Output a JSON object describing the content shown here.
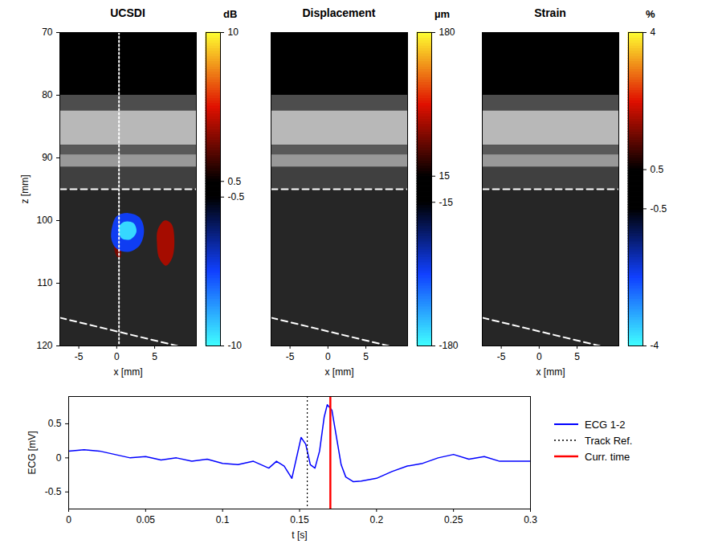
{
  "chart_data": [
    {
      "type": "heatmap",
      "title": "UCSDI",
      "xlabel": "x [mm]",
      "ylabel": "z [mm]",
      "xlim": [
        -7.5,
        10.5
      ],
      "ylim": [
        70,
        120
      ],
      "xticks": [
        -5,
        0,
        5
      ],
      "yticks": [
        70,
        80,
        90,
        100,
        110,
        120
      ],
      "tick_labels": true,
      "colorbar": {
        "label": "dB",
        "range": [
          -10,
          10
        ],
        "ticks": [
          10,
          0.5,
          -0.5,
          -10
        ]
      },
      "background": [
        {
          "z": [
            80,
            82.5
          ],
          "gray": 0.3
        },
        {
          "z": [
            82.5,
            88
          ],
          "gray": 0.72
        },
        {
          "z": [
            88,
            89.5
          ],
          "gray": 0.35
        },
        {
          "z": [
            89.5,
            91.5
          ],
          "gray": 0.6
        },
        {
          "z": [
            91.5,
            95
          ],
          "gray": 0.25
        },
        {
          "z": [
            95,
            120
          ],
          "gray": 0.15
        }
      ],
      "regions": [
        {
          "value": 3,
          "points": [
            [
              -0.3,
              103.5
            ],
            [
              0.2,
              103.2
            ],
            [
              0.6,
              104.5
            ],
            [
              0.4,
              106
            ],
            [
              -0.1,
              105.5
            ]
          ]
        },
        {
          "value": 4,
          "points": [
            [
              5.4,
              101.5
            ],
            [
              6.3,
              100
            ],
            [
              7.2,
              100.5
            ],
            [
              7.6,
              103
            ],
            [
              7.3,
              106
            ],
            [
              6.5,
              107.2
            ],
            [
              5.6,
              106
            ],
            [
              5.3,
              103.5
            ]
          ]
        },
        {
          "value": -5,
          "points": [
            [
              -0.6,
              101
            ],
            [
              0,
              99.3
            ],
            [
              1.5,
              98.8
            ],
            [
              3,
              99.5
            ],
            [
              3.6,
              101.5
            ],
            [
              3,
              104
            ],
            [
              1.5,
              105
            ],
            [
              0,
              104.5
            ],
            [
              -0.7,
              103
            ]
          ]
        },
        {
          "value": -9,
          "points": [
            [
              0.3,
              101
            ],
            [
              1,
              100.2
            ],
            [
              2.2,
              100.4
            ],
            [
              2.6,
              101.8
            ],
            [
              1.8,
              103
            ],
            [
              0.6,
              102.8
            ]
          ]
        }
      ],
      "lines": [
        {
          "x": [
            -7.5,
            10.5
          ],
          "z": [
            95,
            95
          ],
          "line_style": "dashed",
          "color": "#ffffff"
        },
        {
          "x": [
            -7.5,
            8
          ],
          "z": [
            115.5,
            120
          ],
          "line_style": "dashed",
          "color": "#ffffff"
        },
        {
          "x": [
            0.3,
            0.3
          ],
          "z": [
            70,
            120
          ],
          "line_style": "dotted",
          "color": "#ffffff"
        }
      ]
    },
    {
      "type": "heatmap",
      "title": "Displacement",
      "xlabel": "x [mm]",
      "xlim": [
        -7.5,
        10.5
      ],
      "ylim": [
        70,
        120
      ],
      "xticks": [
        -5,
        0,
        5
      ],
      "yticks": [
        70,
        80,
        90,
        100,
        110,
        120
      ],
      "tick_labels": "x",
      "colorbar": {
        "label": "µm",
        "range": [
          -180,
          180
        ],
        "ticks": [
          180,
          15,
          -15,
          -180
        ]
      },
      "background": [
        {
          "z": [
            80,
            82.5
          ],
          "gray": 0.3
        },
        {
          "z": [
            82.5,
            88
          ],
          "gray": 0.72
        },
        {
          "z": [
            88,
            89.5
          ],
          "gray": 0.35
        },
        {
          "z": [
            89.5,
            91.5
          ],
          "gray": 0.6
        },
        {
          "z": [
            91.5,
            95
          ],
          "gray": 0.25
        },
        {
          "z": [
            95,
            120
          ],
          "gray": 0.15
        }
      ],
      "regions": [],
      "lines": [
        {
          "x": [
            -7.5,
            10.5
          ],
          "z": [
            95,
            95
          ],
          "line_style": "dashed",
          "color": "#ffffff"
        },
        {
          "x": [
            -7.5,
            8
          ],
          "z": [
            115.5,
            120
          ],
          "line_style": "dashed",
          "color": "#ffffff"
        }
      ]
    },
    {
      "type": "heatmap",
      "title": "Strain",
      "xlabel": "x [mm]",
      "xlim": [
        -7.5,
        10.5
      ],
      "ylim": [
        70,
        120
      ],
      "xticks": [
        -5,
        0,
        5
      ],
      "yticks": [
        70,
        80,
        90,
        100,
        110,
        120
      ],
      "tick_labels": "x",
      "colorbar": {
        "label": "%",
        "range": [
          -4,
          4
        ],
        "ticks": [
          4,
          0.5,
          -0.5,
          -4
        ]
      },
      "background": [
        {
          "z": [
            80,
            82.5
          ],
          "gray": 0.3
        },
        {
          "z": [
            82.5,
            88
          ],
          "gray": 0.72
        },
        {
          "z": [
            88,
            89.5
          ],
          "gray": 0.35
        },
        {
          "z": [
            89.5,
            91.5
          ],
          "gray": 0.6
        },
        {
          "z": [
            91.5,
            95
          ],
          "gray": 0.25
        },
        {
          "z": [
            95,
            120
          ],
          "gray": 0.15
        }
      ],
      "regions": [],
      "lines": [
        {
          "x": [
            -7.5,
            10.5
          ],
          "z": [
            95,
            95
          ],
          "line_style": "dashed",
          "color": "#ffffff"
        },
        {
          "x": [
            -7.5,
            8
          ],
          "z": [
            115.5,
            120
          ],
          "line_style": "dashed",
          "color": "#ffffff"
        }
      ]
    },
    {
      "type": "line",
      "xlabel": "t [s]",
      "ylabel": "ECG [mV]",
      "xlim": [
        0,
        0.3
      ],
      "ylim": [
        -0.75,
        0.9
      ],
      "xticks": [
        0,
        0.05,
        0.1,
        0.15,
        0.2,
        0.25,
        0.3
      ],
      "yticks": [
        -0.5,
        0,
        0.5
      ],
      "legend": "right",
      "x": [
        0,
        0.01,
        0.02,
        0.03,
        0.04,
        0.05,
        0.06,
        0.07,
        0.08,
        0.09,
        0.1,
        0.11,
        0.12,
        0.13,
        0.135,
        0.14,
        0.145,
        0.148,
        0.151,
        0.154,
        0.157,
        0.16,
        0.163,
        0.166,
        0.168,
        0.171,
        0.174,
        0.177,
        0.18,
        0.185,
        0.19,
        0.2,
        0.21,
        0.22,
        0.23,
        0.24,
        0.25,
        0.26,
        0.27,
        0.28,
        0.29,
        0.3
      ],
      "series": [
        {
          "name": "ECG 1-2",
          "color": "#0000ff",
          "line_style": "solid",
          "values": [
            0.1,
            0.12,
            0.1,
            0.05,
            0.0,
            0.02,
            -0.03,
            0.0,
            -0.05,
            -0.02,
            -0.08,
            -0.1,
            -0.05,
            -0.15,
            -0.05,
            -0.12,
            -0.3,
            0.0,
            0.3,
            0.2,
            -0.1,
            -0.15,
            0.1,
            0.6,
            0.78,
            0.7,
            0.3,
            -0.1,
            -0.28,
            -0.35,
            -0.34,
            -0.3,
            -0.2,
            -0.12,
            -0.08,
            0.0,
            0.05,
            -0.02,
            0.02,
            -0.05,
            -0.05,
            -0.05
          ]
        }
      ],
      "vlines": [
        {
          "name": "Track Ref.",
          "x": 0.155,
          "color": "#000000",
          "line_style": "dotted"
        },
        {
          "name": "Curr. time",
          "x": 0.17,
          "color": "#ff0000",
          "line_style": "solid"
        }
      ]
    }
  ]
}
